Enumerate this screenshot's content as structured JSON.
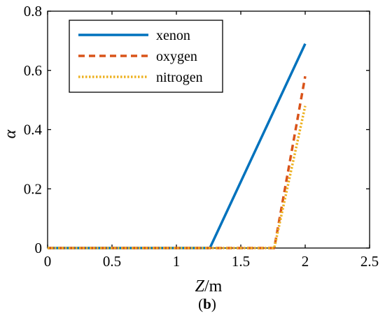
{
  "chart_data": {
    "type": "line",
    "xlabel_var": "Z",
    "xlabel_unit": "/m",
    "ylabel": "α",
    "xlim": [
      0,
      2.5
    ],
    "ylim": [
      0,
      0.8
    ],
    "xticks": [
      0,
      0.5,
      1,
      1.5,
      2,
      2.5
    ],
    "yticks": [
      0,
      0.2,
      0.4,
      0.6,
      0.8
    ],
    "xtick_labels": [
      "0",
      "0.5",
      "1",
      "1.5",
      "2",
      "2.5"
    ],
    "ytick_labels": [
      "0",
      "0.2",
      "0.4",
      "0.6",
      "0.8"
    ],
    "grid": false,
    "legend_position": "top-left",
    "series": [
      {
        "name": "xenon",
        "color": "#0072BD",
        "style": "solid",
        "x": [
          0,
          1.26,
          2.0
        ],
        "y": [
          0,
          0,
          0.69
        ]
      },
      {
        "name": "oxygen",
        "color": "#D95319",
        "style": "dashed",
        "x": [
          0,
          1.76,
          2.0
        ],
        "y": [
          0,
          0,
          0.58
        ]
      },
      {
        "name": "nitrogen",
        "color": "#EDB120",
        "style": "dotted",
        "x": [
          0,
          1.76,
          2.0
        ],
        "y": [
          0,
          0,
          0.48
        ]
      }
    ]
  },
  "caption": "(b)"
}
